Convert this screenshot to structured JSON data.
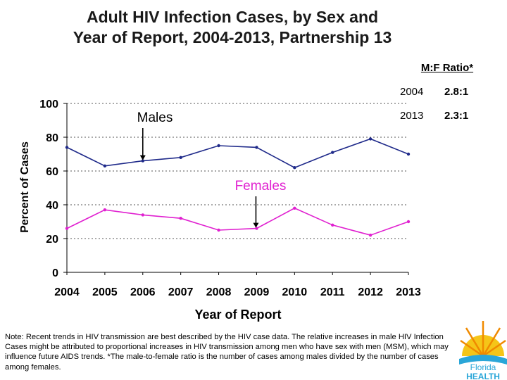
{
  "title": {
    "line1": "Adult HIV Infection Cases, by Sex and",
    "line2": "Year of Report, 2004-2013, Partnership 13"
  },
  "ratio_box": {
    "heading": "M:F Ratio*",
    "rows": [
      {
        "year": "2004",
        "ratio": "2.8:1"
      },
      {
        "year": "2013",
        "ratio": "2.3:1"
      }
    ]
  },
  "chart_data": {
    "type": "line",
    "x": [
      "2004",
      "2005",
      "2006",
      "2007",
      "2008",
      "2009",
      "2010",
      "2011",
      "2012",
      "2013"
    ],
    "series": [
      {
        "name": "Males",
        "color": "#1f2a8a",
        "values": [
          74,
          63,
          66,
          68,
          75,
          74,
          62,
          71,
          79,
          70
        ]
      },
      {
        "name": "Females",
        "color": "#e020d0",
        "values": [
          26,
          37,
          34,
          32,
          25,
          26,
          38,
          28,
          22,
          30
        ]
      }
    ],
    "xlabel": "Year of Report",
    "ylabel": "Percent of Cases",
    "ylim": [
      0,
      100
    ],
    "yticks": [
      "0",
      "20",
      "40",
      "60",
      "80",
      "100"
    ],
    "grid": true,
    "annotations": [
      {
        "text": "Males",
        "points_to": "2006",
        "series": "Males"
      },
      {
        "text": "Females",
        "points_to": "2009",
        "series": "Females"
      }
    ]
  },
  "note": "Note: Recent trends in HIV transmission are best described by the HIV case data. The relative increases in male HIV Infection Cases might be attributed to proportional increases in HIV transmission among men who have sex with men (MSM), which may influence future AIDS trends. *The male-to-female ratio is the number of cases among males divided by the number of cases among females.",
  "logo": {
    "line1": "Florida",
    "line2": "HEALTH"
  }
}
